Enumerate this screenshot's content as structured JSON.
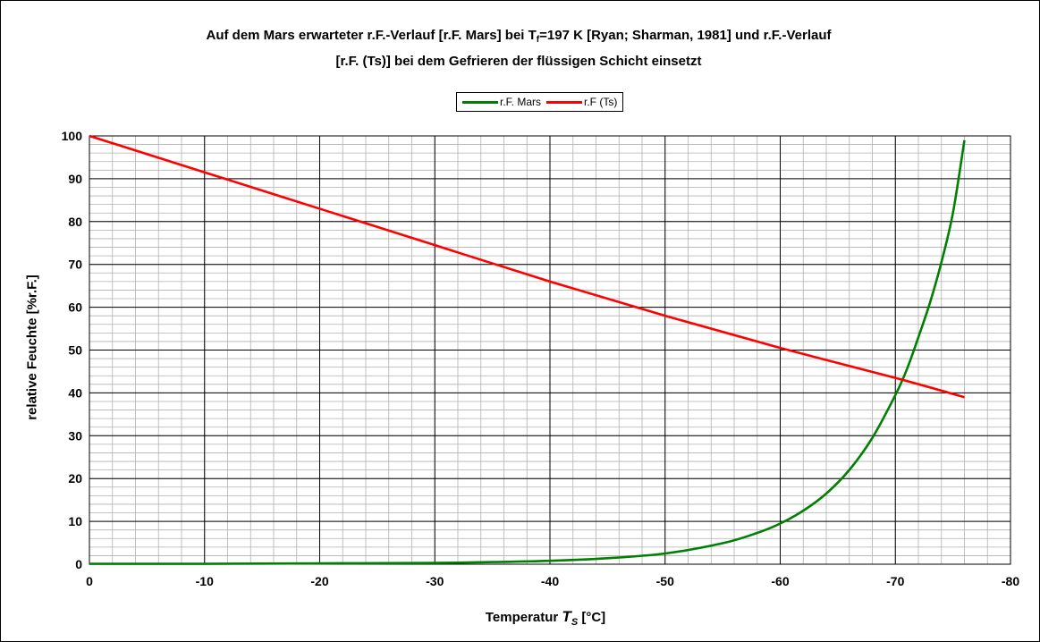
{
  "title": {
    "part1": "Auf dem Mars erwarteter r.F.-Verlauf [r.F. Mars] bei T",
    "sub": "f",
    "part2": "=197 K [Ryan; Sharman, 1981] und r.F.-Verlauf",
    "line2": "[r.F. (Ts)] bei dem Gefrieren der flüssigen Schicht einsetzt"
  },
  "axes": {
    "xlabel_main": "Temperatur ",
    "xlabel_symbol": "T",
    "xlabel_sub": "S",
    "xlabel_unit": " [°C]",
    "ylabel": "relative Feuchte [%r.F.]"
  },
  "chart_data": {
    "type": "line",
    "xlim": [
      0,
      -80
    ],
    "ylim": [
      0,
      100
    ],
    "x_ticks": [
      0,
      -10,
      -20,
      -30,
      -40,
      -50,
      -60,
      -70,
      -80
    ],
    "y_ticks": [
      0,
      10,
      20,
      30,
      40,
      50,
      60,
      70,
      80,
      90,
      100
    ],
    "minor_grid": {
      "x_step": 2,
      "y_step": 2
    },
    "grid": true,
    "legend_position": "top-center",
    "series": [
      {
        "name": "r.F. Mars",
        "color": "#008000",
        "x": [
          0,
          -10,
          -20,
          -30,
          -35,
          -40,
          -45,
          -50,
          -55,
          -58,
          -60,
          -62,
          -64,
          -66,
          -68,
          -70,
          -71,
          -72,
          -73,
          -74,
          -75,
          -76
        ],
        "y": [
          0.1,
          0.1,
          0.2,
          0.3,
          0.5,
          0.8,
          1.4,
          2.5,
          4.9,
          7.3,
          9.5,
          12.5,
          16.5,
          22,
          29.5,
          39.5,
          45.5,
          53,
          61,
          70.5,
          82,
          99
        ]
      },
      {
        "name": "r.F (Ts)",
        "color": "#ff0000",
        "x": [
          0,
          -10,
          -20,
          -30,
          -40,
          -50,
          -60,
          -70,
          -76
        ],
        "y": [
          100,
          91.5,
          83,
          74.5,
          66,
          58,
          50.5,
          43.5,
          39
        ]
      }
    ]
  }
}
